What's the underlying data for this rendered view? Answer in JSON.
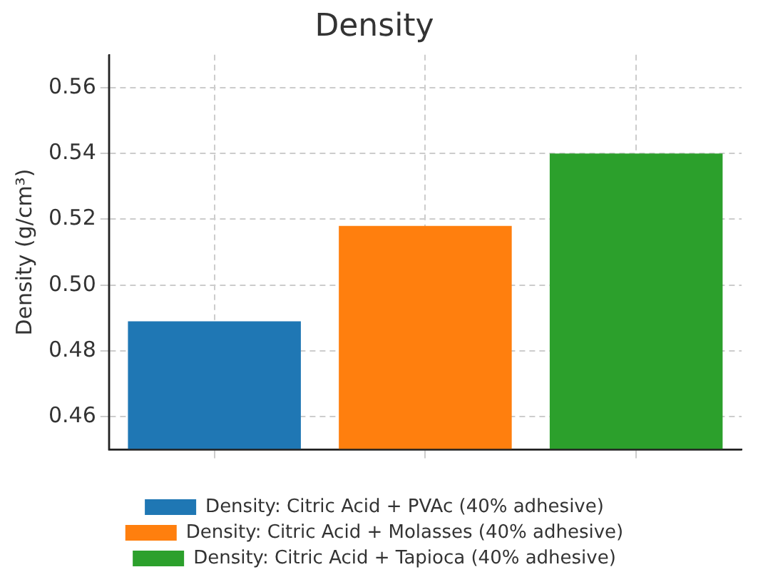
{
  "chart_data": {
    "type": "bar",
    "title": "Density",
    "ylabel": "Density (g/cm³)",
    "categories": [
      null,
      null,
      null
    ],
    "series": [
      {
        "name": "Density: Citric Acid + PVAc (40% adhesive)",
        "color": "#1f77b4",
        "values": [
          0.489,
          null,
          null
        ]
      },
      {
        "name": "Density: Citric Acid + Molasses (40% adhesive)",
        "color": "#ff7f0e",
        "values": [
          null,
          0.518,
          null
        ]
      },
      {
        "name": "Density: Citric Acid + Tapioca (40% adhesive)",
        "color": "#2ca02c",
        "values": [
          null,
          null,
          0.54
        ]
      }
    ],
    "ylim": [
      0.45,
      0.57
    ],
    "yticks": [
      0.46,
      0.48,
      {
        "value": 0.5,
        "label": "0.50"
      },
      0.52,
      0.54,
      0.56
    ],
    "grid": true,
    "legend": "bottom"
  }
}
